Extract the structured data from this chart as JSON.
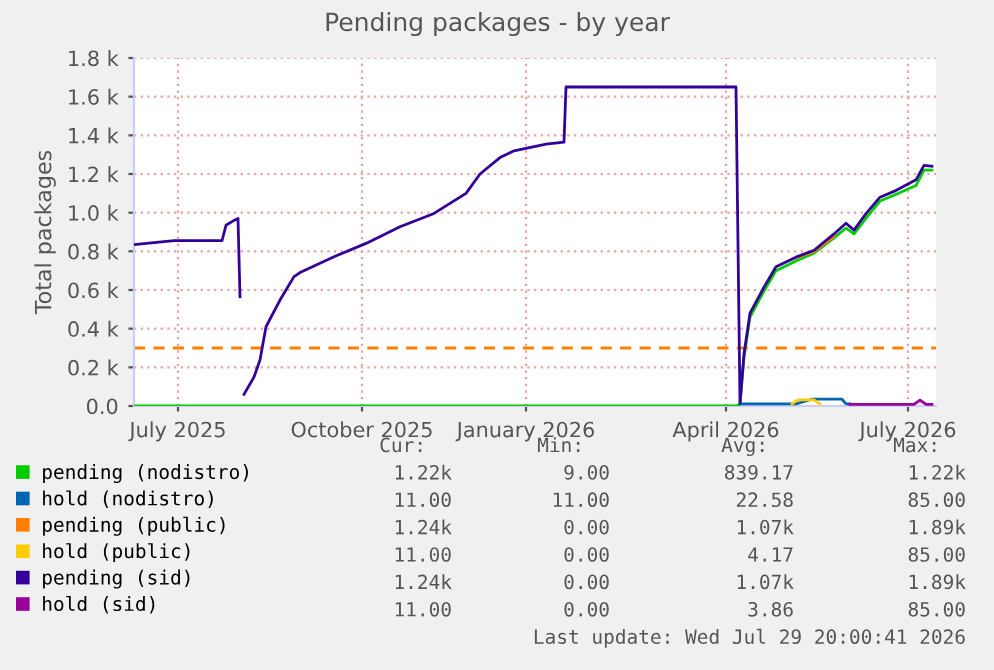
{
  "chart_data": {
    "type": "line",
    "title": "Pending packages - by year",
    "ylabel": "Total packages",
    "xlim": [
      "2025-06-23",
      "2026-07-29"
    ],
    "xticks": [
      {
        "value": "2025-07-15",
        "label": "July 2025"
      },
      {
        "value": "2025-10-15",
        "label": "October 2025"
      },
      {
        "value": "2026-01-05",
        "label": "January 2026"
      },
      {
        "value": "2026-04-15",
        "label": "April 2026"
      },
      {
        "value": "2026-07-15",
        "label": "July 2026"
      }
    ],
    "ylim": [
      0,
      1800
    ],
    "yticks": [
      {
        "value": 0,
        "label": "0.0"
      },
      {
        "value": 200,
        "label": "0.2 k"
      },
      {
        "value": 400,
        "label": "0.4 k"
      },
      {
        "value": 600,
        "label": "0.6 k"
      },
      {
        "value": 800,
        "label": "0.8 k"
      },
      {
        "value": 1000,
        "label": "1.0 k"
      },
      {
        "value": 1200,
        "label": "1.2 k"
      },
      {
        "value": 1400,
        "label": "1.4 k"
      },
      {
        "value": 1600,
        "label": "1.6 k"
      },
      {
        "value": 1800,
        "label": "1.8 k"
      }
    ],
    "grid": true,
    "legend": "bottom",
    "marker": "none",
    "line_style": "solid",
    "ref_lines": [
      {
        "axis": "y",
        "value": 300,
        "color": "#ff8000",
        "line_style": "dashed"
      }
    ],
    "series": [
      {
        "name": "pending (nodistro)",
        "color": "#00cc00",
        "x": [
          "2025-06-23",
          "2026-04-20",
          "2026-04-22",
          "2026-04-24",
          "2026-04-27",
          "2026-05-04",
          "2026-05-10",
          "2026-05-20",
          "2026-05-29",
          "2026-06-08",
          "2026-06-14",
          "2026-06-18",
          "2026-06-24",
          "2026-07-01",
          "2026-07-08",
          "2026-07-19",
          "2026-07-23",
          "2026-07-27"
        ],
        "values": [
          0,
          0,
          9,
          250,
          460,
          595,
          700,
          750,
          790,
          870,
          920,
          890,
          970,
          1060,
          1090,
          1140,
          1220,
          1220
        ]
      },
      {
        "name": "hold (nodistro)",
        "color": "#0066b3",
        "x": [
          "2026-04-22",
          "2026-05-20",
          "2026-05-28",
          "2026-06-12",
          "2026-06-14",
          "2026-06-16"
        ],
        "values": [
          11,
          11,
          35,
          35,
          11,
          11
        ]
      },
      {
        "name": "pending (public)",
        "color": "#ff8000",
        "x": [
          "2026-05-18",
          "2026-05-29",
          "2026-06-08"
        ],
        "values": [
          760,
          798,
          878
        ]
      },
      {
        "name": "hold (public)",
        "color": "#ffcc00",
        "x": [
          "2026-05-18",
          "2026-05-21",
          "2026-05-29",
          "2026-06-01"
        ],
        "values": [
          11,
          32,
          32,
          11
        ]
      },
      {
        "name": "pending (sid)",
        "color": "#330099",
        "x": [
          "2025-06-23",
          "2025-07-03",
          "2025-07-13",
          "2025-08-06",
          "2025-08-08",
          "2025-08-12",
          "2025-08-14",
          "2025-08-15",
          "2025-08-16",
          "2025-08-17",
          "2025-08-22",
          "2025-08-25",
          "2025-08-28",
          "2025-09-04",
          "2025-09-11",
          "2025-09-14",
          "2025-10-01",
          "2025-10-17",
          "2025-11-03",
          "2025-11-20",
          "2025-12-06",
          "2025-12-13",
          "2025-12-23",
          "2025-12-30",
          "2026-01-15",
          "2026-01-24",
          "2026-01-25",
          "2026-04-20",
          "2026-04-22",
          "2026-04-24",
          "2026-04-27",
          "2026-05-04",
          "2026-05-10",
          "2026-05-20",
          "2026-05-29",
          "2026-06-08",
          "2026-06-14",
          "2026-06-18",
          "2026-06-24",
          "2026-07-01",
          "2026-07-08",
          "2026-07-19",
          "2026-07-23",
          "2026-07-27"
        ],
        "values": [
          835,
          845,
          855,
          855,
          935,
          960,
          970,
          565,
          null,
          60,
          150,
          238,
          410,
          548,
          669,
          690,
          772,
          841,
          927,
          996,
          1100,
          1200,
          1285,
          1320,
          1355,
          1365,
          1650,
          1650,
          15,
          270,
          480,
          615,
          720,
          770,
          805,
          890,
          945,
          910,
          995,
          1080,
          1110,
          1170,
          1245,
          1240
        ]
      },
      {
        "name": "hold (sid)",
        "color": "#990099",
        "x": [
          "2026-06-16",
          "2026-07-18",
          "2026-07-21",
          "2026-07-24",
          "2026-07-27"
        ],
        "values": [
          8,
          8,
          30,
          8,
          8
        ]
      }
    ],
    "annotations": [
      "Cur:",
      "Min:",
      "Avg:",
      "Max:",
      "1.22k",
      "9.00",
      "839.17",
      "1.22k",
      "11.00",
      "11.00",
      "22.58",
      "85.00",
      "1.24k",
      "0.00",
      "1.07k",
      "1.89k",
      "11.00",
      "0.00",
      "4.17",
      "85.00",
      "1.24k",
      "0.00",
      "1.07k",
      "1.89k",
      "11.00",
      "0.00",
      "3.86",
      "85.00",
      "Last update: Wed Jul 29 20:00:41 2026"
    ]
  }
}
